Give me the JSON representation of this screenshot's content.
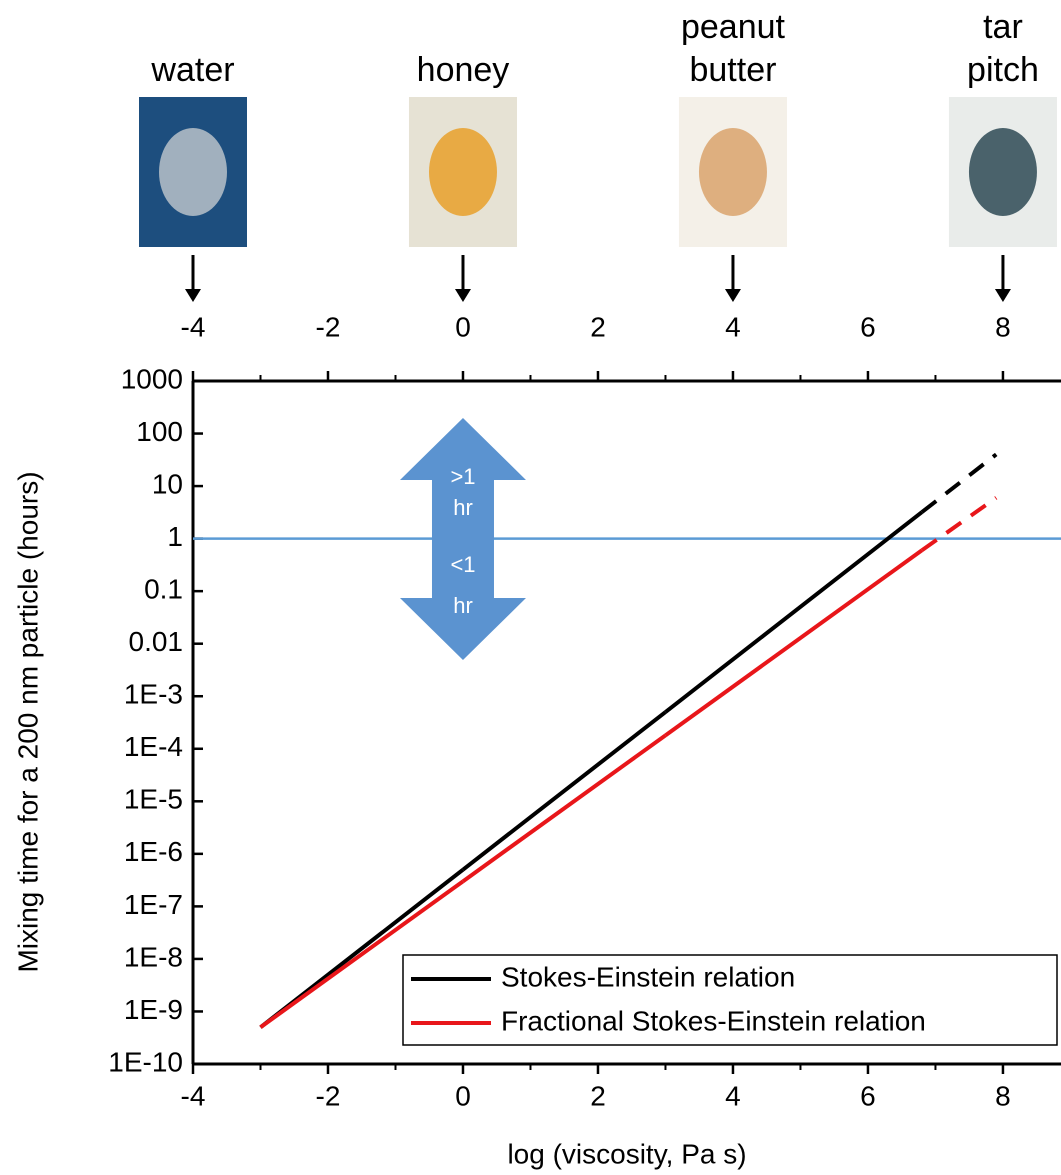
{
  "chart_data": {
    "type": "line",
    "xlabel": "log (viscosity, Pa s)",
    "ylabel": "Mixing time for a 200 nm particle (hours)",
    "x": [
      -3,
      0,
      3,
      6.8,
      7.9
    ],
    "segment_styles": [
      "solid",
      "solid",
      "solid",
      "dashed"
    ],
    "series": [
      {
        "name": "Stokes-Einstein relation",
        "color": "#000000",
        "values": [
          5e-10,
          5e-07,
          0.0005,
          3.2,
          40
        ]
      },
      {
        "name": "Fractional Stokes-Einstein relation",
        "color": "#e8161a",
        "values": [
          5e-10,
          3e-07,
          0.00018,
          0.6,
          6
        ]
      }
    ],
    "xlim": [
      -4,
      8.86
    ],
    "xticks": [
      -4,
      -2,
      0,
      2,
      4,
      6,
      8
    ],
    "x_minor_ticks": [
      -3,
      -1,
      1,
      3,
      5,
      7
    ],
    "ylog": true,
    "ylim": [
      1e-10,
      1000
    ],
    "yticks": [
      1000,
      100,
      10,
      1,
      0.1,
      0.01,
      {
        "value": 0.001,
        "label": "1E-3"
      },
      {
        "value": 0.0001,
        "label": "1E-4"
      },
      {
        "value": 1e-05,
        "label": "1E-5"
      },
      {
        "value": 1e-06,
        "label": "1E-6"
      },
      {
        "value": 1e-07,
        "label": "1E-7"
      },
      {
        "value": 1e-08,
        "label": "1E-8"
      },
      {
        "value": 1e-09,
        "label": "1E-9"
      },
      {
        "value": 1e-10,
        "label": "1E-10"
      }
    ],
    "hline": {
      "value": 1,
      "color": "#5b9bd5"
    },
    "legend": "lower right",
    "annotation": {
      "x": 0,
      "up_label": [
        ">1",
        "hr"
      ],
      "down_label": [
        "<1",
        "hr"
      ],
      "color": "#5b93d0"
    },
    "materials": [
      {
        "label": [
          "water"
        ],
        "x": -4
      },
      {
        "label": [
          "honey"
        ],
        "x": 0
      },
      {
        "label": [
          "peanut",
          "butter"
        ],
        "x": 4
      },
      {
        "label": [
          "tar",
          "pitch"
        ],
        "x": 8
      }
    ]
  }
}
